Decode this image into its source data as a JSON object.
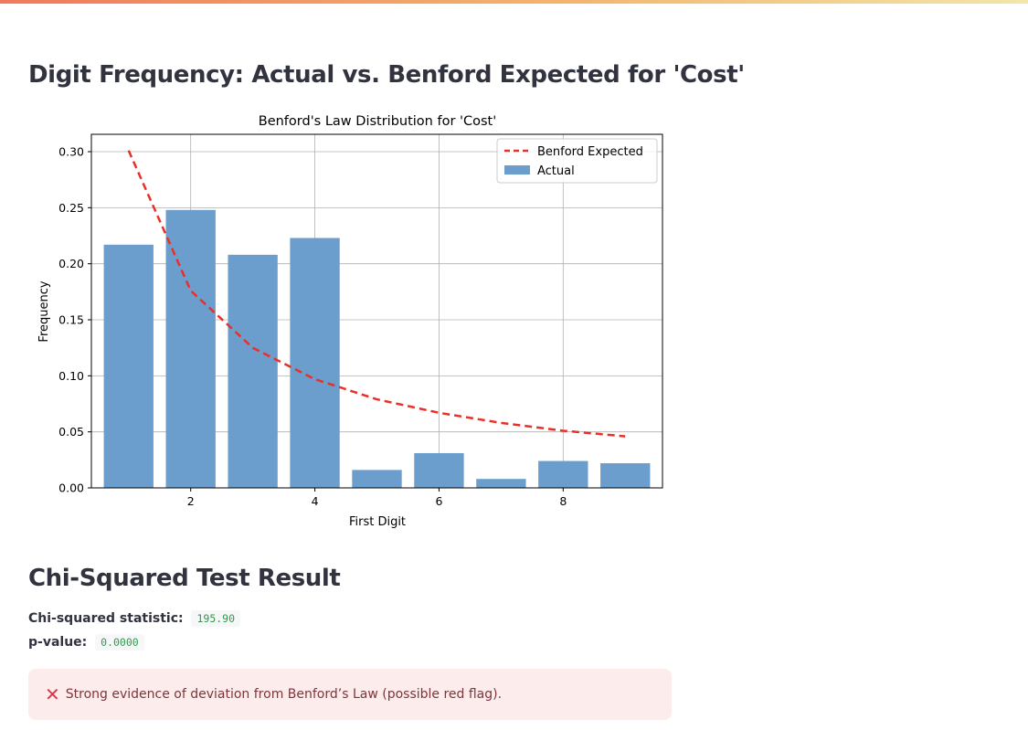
{
  "page": {
    "title": "Digit Frequency: Actual vs. Benford Expected for 'Cost'",
    "chi_section_title": "Chi-Squared Test Result"
  },
  "stats": {
    "chi_label": "Chi-squared statistic:",
    "chi_value": "195.90",
    "p_label": "p-value:",
    "p_value": "0.0000"
  },
  "alert": {
    "icon": "x-icon",
    "message": "Strong evidence of deviation from Benford’s Law (possible red flag)."
  },
  "colors": {
    "bar": "#6b9ecc",
    "benford_line": "#e8302a",
    "alert_bg": "#fdecec",
    "code_text": "#2e9a4a"
  },
  "chart_data": {
    "type": "bar",
    "title": "Benford's Law Distribution for 'Cost'",
    "xlabel": "First Digit",
    "ylabel": "Frequency",
    "categories": [
      1,
      2,
      3,
      4,
      5,
      6,
      7,
      8,
      9
    ],
    "series": [
      {
        "name": "Actual",
        "kind": "bar",
        "values": [
          0.217,
          0.248,
          0.208,
          0.223,
          0.016,
          0.031,
          0.008,
          0.024,
          0.022
        ]
      },
      {
        "name": "Benford Expected",
        "kind": "line-dashed",
        "values": [
          0.301,
          0.176,
          0.125,
          0.097,
          0.079,
          0.067,
          0.058,
          0.051,
          0.046
        ]
      }
    ],
    "xticks": [
      2,
      4,
      6,
      8
    ],
    "xtick_labels": [
      "2",
      "4",
      "6",
      "8"
    ],
    "yticks": [
      0.0,
      0.05,
      0.1,
      0.15,
      0.2,
      0.25,
      0.3
    ],
    "ytick_labels": [
      "0.00",
      "0.05",
      "0.10",
      "0.15",
      "0.20",
      "0.25",
      "0.30"
    ],
    "xlim": [
      0.4,
      9.6
    ],
    "ylim": [
      0,
      0.3155
    ],
    "grid": true,
    "legend": {
      "position": "top-right",
      "entries": [
        "Benford Expected",
        "Actual"
      ]
    }
  }
}
